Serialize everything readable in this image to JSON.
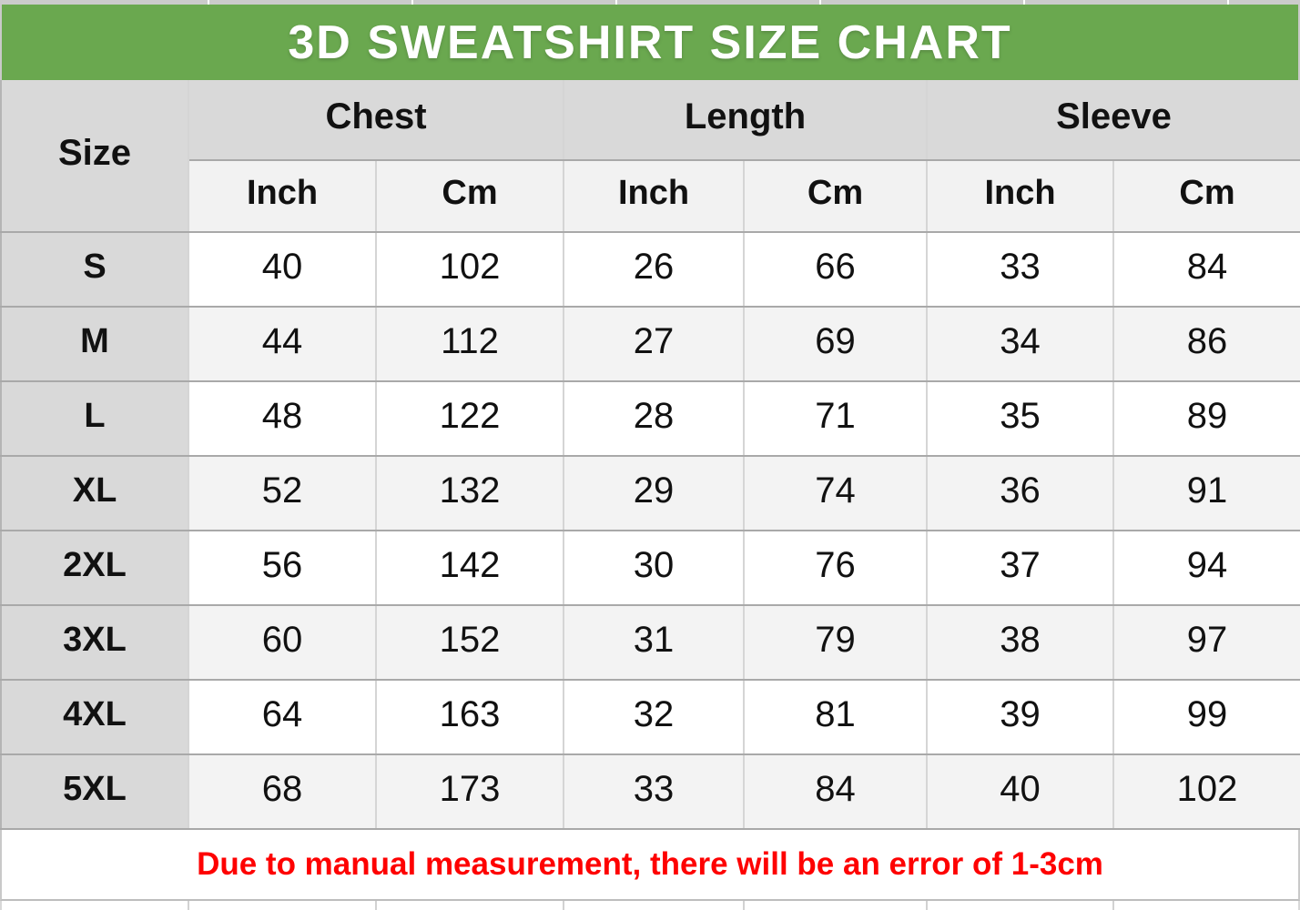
{
  "title": "3D SWEATSHIRT SIZE CHART",
  "note": "Due to manual measurement, there will be an error of 1-3cm",
  "table": {
    "size_label": "Size",
    "groups": [
      {
        "label": "Chest"
      },
      {
        "label": "Length"
      },
      {
        "label": "Sleeve"
      }
    ],
    "unit_labels": [
      "Inch",
      "Cm",
      "Inch",
      "Cm",
      "Inch",
      "Cm"
    ],
    "rows": [
      {
        "size": "S",
        "values": [
          40,
          102,
          26,
          66,
          33,
          84
        ]
      },
      {
        "size": "M",
        "values": [
          44,
          112,
          27,
          69,
          34,
          86
        ]
      },
      {
        "size": "L",
        "values": [
          48,
          122,
          28,
          71,
          35,
          89
        ]
      },
      {
        "size": "XL",
        "values": [
          52,
          132,
          29,
          74,
          36,
          91
        ]
      },
      {
        "size": "2XL",
        "values": [
          56,
          142,
          30,
          76,
          37,
          94
        ]
      },
      {
        "size": "3XL",
        "values": [
          60,
          152,
          31,
          79,
          38,
          97
        ]
      },
      {
        "size": "4XL",
        "values": [
          64,
          163,
          32,
          81,
          39,
          99
        ]
      },
      {
        "size": "5XL",
        "values": [
          68,
          173,
          33,
          84,
          40,
          102
        ]
      }
    ]
  },
  "chart_data": {
    "type": "table",
    "title": "3D SWEATSHIRT SIZE CHART",
    "columns": [
      "Size",
      "Chest Inch",
      "Chest Cm",
      "Length Inch",
      "Length Cm",
      "Sleeve Inch",
      "Sleeve Cm"
    ],
    "rows": [
      [
        "S",
        40,
        102,
        26,
        66,
        33,
        84
      ],
      [
        "M",
        44,
        112,
        27,
        69,
        34,
        86
      ],
      [
        "L",
        48,
        122,
        28,
        71,
        35,
        89
      ],
      [
        "XL",
        52,
        132,
        29,
        74,
        36,
        91
      ],
      [
        "2XL",
        56,
        142,
        30,
        76,
        37,
        94
      ],
      [
        "3XL",
        60,
        152,
        31,
        79,
        38,
        97
      ],
      [
        "4XL",
        64,
        163,
        32,
        81,
        39,
        99
      ],
      [
        "5XL",
        68,
        173,
        33,
        84,
        40,
        102
      ]
    ],
    "footnote": "Due to manual measurement, there will be an error of 1-3cm"
  },
  "colors": {
    "green": "#6aa84f",
    "red": "#fe0101",
    "header_gray": "#d9d9d9",
    "subheader_gray": "#f2f2f2",
    "row_alt": "#f3f3f3"
  }
}
